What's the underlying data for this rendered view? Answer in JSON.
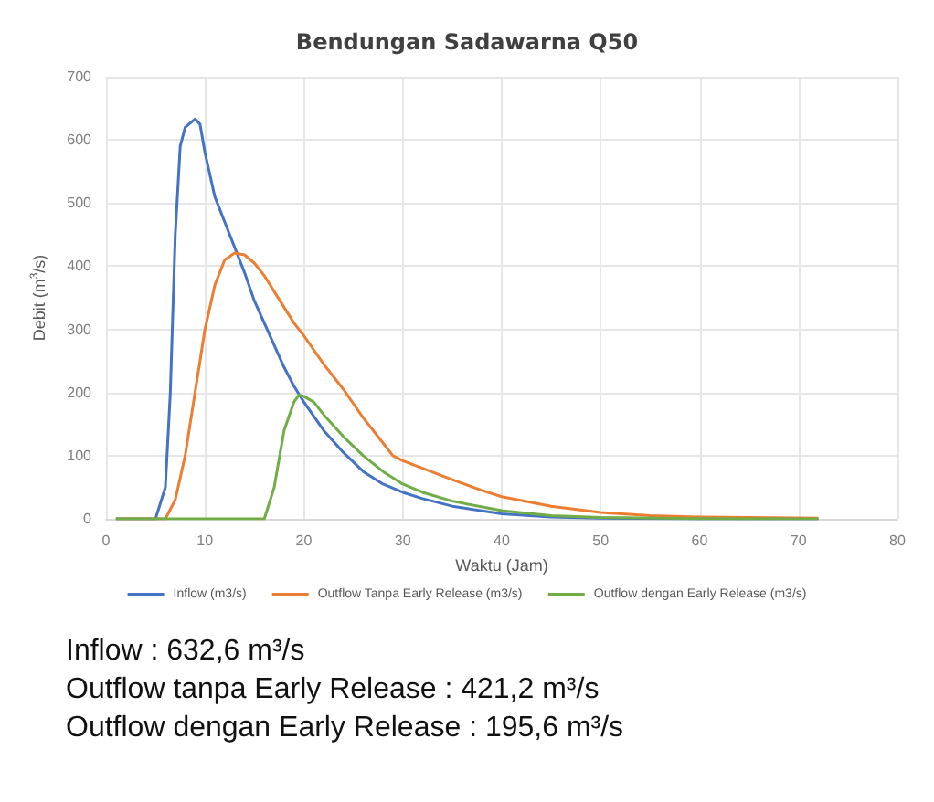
{
  "chart_data": {
    "type": "line",
    "title": "Bendungan Sadawarna Q50",
    "xlabel": "Waktu (Jam)",
    "ylabel": "Debit (m$^{3}$/s)",
    "xlim": [
      0,
      80
    ],
    "xticks": [
      0,
      10,
      20,
      30,
      40,
      50,
      60,
      70,
      80
    ],
    "ylim": [
      0,
      700
    ],
    "yticks": [
      0,
      100,
      200,
      300,
      400,
      500,
      600,
      700
    ],
    "grid": true,
    "legend": "bottom",
    "marker": "none",
    "line_style": "solid",
    "series": [
      {
        "name": "Inflow (m3/s)",
        "color": "#4472c4",
        "x": [
          1,
          5,
          6,
          6.5,
          7,
          7.5,
          8,
          9,
          9.5,
          10,
          11,
          12,
          13,
          14,
          15,
          16,
          17,
          18,
          19,
          20,
          22,
          24,
          26,
          28,
          30,
          32,
          35,
          40,
          45,
          50,
          60,
          72
        ],
        "values": [
          0,
          0,
          50,
          200,
          450,
          590,
          620,
          633,
          625,
          580,
          510,
          470,
          430,
          390,
          345,
          310,
          275,
          240,
          210,
          185,
          140,
          105,
          75,
          55,
          42,
          32,
          20,
          8,
          3,
          1,
          0,
          0
        ]
      },
      {
        "name": "Outflow Tanpa Early Release (m3/s)",
        "color": "#ed7d31",
        "x": [
          1,
          6,
          7,
          8,
          9,
          10,
          11,
          12,
          13,
          14,
          15,
          16,
          17,
          18,
          19,
          20,
          22,
          24,
          26,
          28,
          29,
          30,
          32,
          35,
          38,
          40,
          45,
          50,
          55,
          60,
          65,
          72
        ],
        "values": [
          0,
          0,
          30,
          100,
          200,
          300,
          370,
          410,
          421,
          418,
          405,
          385,
          360,
          335,
          310,
          290,
          245,
          205,
          160,
          120,
          100,
          92,
          80,
          62,
          45,
          35,
          20,
          10,
          5,
          3,
          2,
          1
        ]
      },
      {
        "name": "Outflow dengan Early Release (m3/s)",
        "color": "#70ad47",
        "x": [
          1,
          16,
          17,
          18,
          19,
          19.5,
          20,
          21,
          22,
          24,
          26,
          28,
          30,
          32,
          35,
          40,
          45,
          50,
          60,
          72
        ],
        "values": [
          0,
          0,
          50,
          140,
          185,
          196,
          194,
          185,
          165,
          130,
          100,
          75,
          55,
          42,
          28,
          13,
          5,
          2,
          0.5,
          0
        ]
      }
    ],
    "annotations": [
      "Inflow : 632,6 m³/s",
      "Outflow tanpa Early Release : 421,2 m³/s",
      "Outflow dengan Early Release : 195,6 m³/s"
    ]
  }
}
